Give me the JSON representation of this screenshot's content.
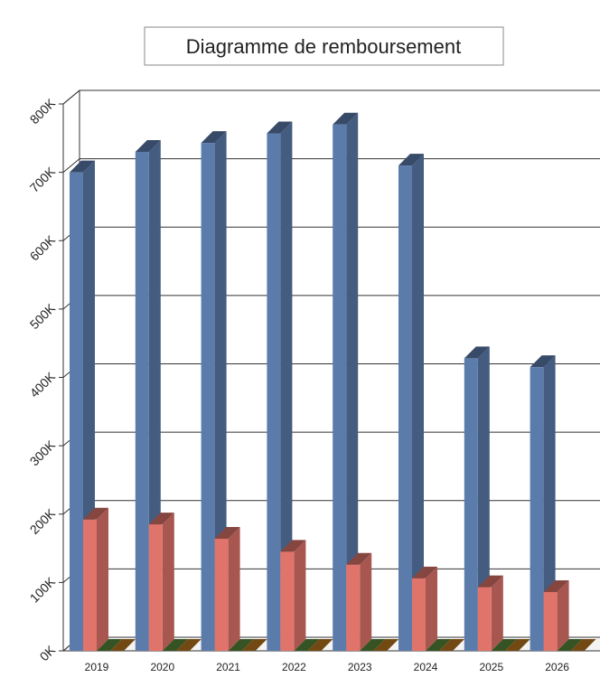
{
  "chart_data": {
    "type": "bar3d",
    "title": "Diagramme de remboursement",
    "categories": [
      "2019",
      "2020",
      "2021",
      "2022",
      "2023",
      "2024",
      "2025",
      "2026"
    ],
    "series": [
      {
        "color": "#5b7bab",
        "values": [
          700000,
          730000,
          743000,
          757000,
          770000,
          710000,
          428000,
          415000
        ]
      },
      {
        "color": "#e0746a",
        "values": [
          192000,
          185000,
          164000,
          145000,
          126000,
          106000,
          93000,
          86000
        ]
      },
      {
        "color": "#5a8a3a",
        "values": [
          0,
          0,
          0,
          0,
          0,
          0,
          0,
          0
        ]
      },
      {
        "color": "#c07a20",
        "values": [
          0,
          0,
          0,
          0,
          0,
          0,
          0,
          0
        ]
      }
    ],
    "ylim": [
      0,
      800000
    ],
    "yticks": [
      {
        "value": 0,
        "label": "0K"
      },
      {
        "value": 100000,
        "label": "100K"
      },
      {
        "value": 200000,
        "label": "200K"
      },
      {
        "value": 300000,
        "label": "300K"
      },
      {
        "value": 400000,
        "label": "400K"
      },
      {
        "value": 500000,
        "label": "500K"
      },
      {
        "value": 600000,
        "label": "600K"
      },
      {
        "value": 700000,
        "label": "700K"
      },
      {
        "value": 800000,
        "label": "800K"
      }
    ],
    "grid": true
  }
}
